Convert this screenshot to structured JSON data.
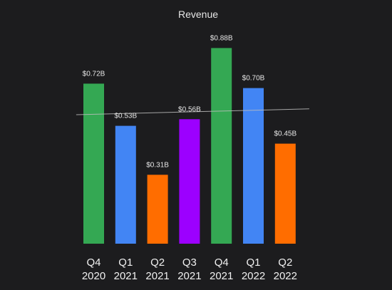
{
  "chart_data": {
    "type": "bar",
    "title": "Revenue",
    "xlabel": "",
    "ylabel": "",
    "ylim": [
      0,
      1.0
    ],
    "grid": false,
    "legend": false,
    "categories": [
      [
        "Q4",
        "2020"
      ],
      [
        "Q1",
        "2021"
      ],
      [
        "Q2",
        "2021"
      ],
      [
        "Q3",
        "2021"
      ],
      [
        "Q4",
        "2021"
      ],
      [
        "Q1",
        "2022"
      ],
      [
        "Q2",
        "2022"
      ]
    ],
    "values": [
      0.72,
      0.53,
      0.31,
      0.56,
      0.88,
      0.7,
      0.45
    ],
    "data_labels": [
      "$0.72B",
      "$0.53B",
      "$0.31B",
      "$0.56B",
      "$0.88B",
      "$0.70B",
      "$0.45B"
    ],
    "colors": [
      "#34a853",
      "#4285f4",
      "#ff6d00",
      "#9c00ff",
      "#34a853",
      "#4285f4",
      "#ff6d00"
    ],
    "trendline": {
      "type": "linear",
      "color": "#bdbdbd"
    }
  }
}
